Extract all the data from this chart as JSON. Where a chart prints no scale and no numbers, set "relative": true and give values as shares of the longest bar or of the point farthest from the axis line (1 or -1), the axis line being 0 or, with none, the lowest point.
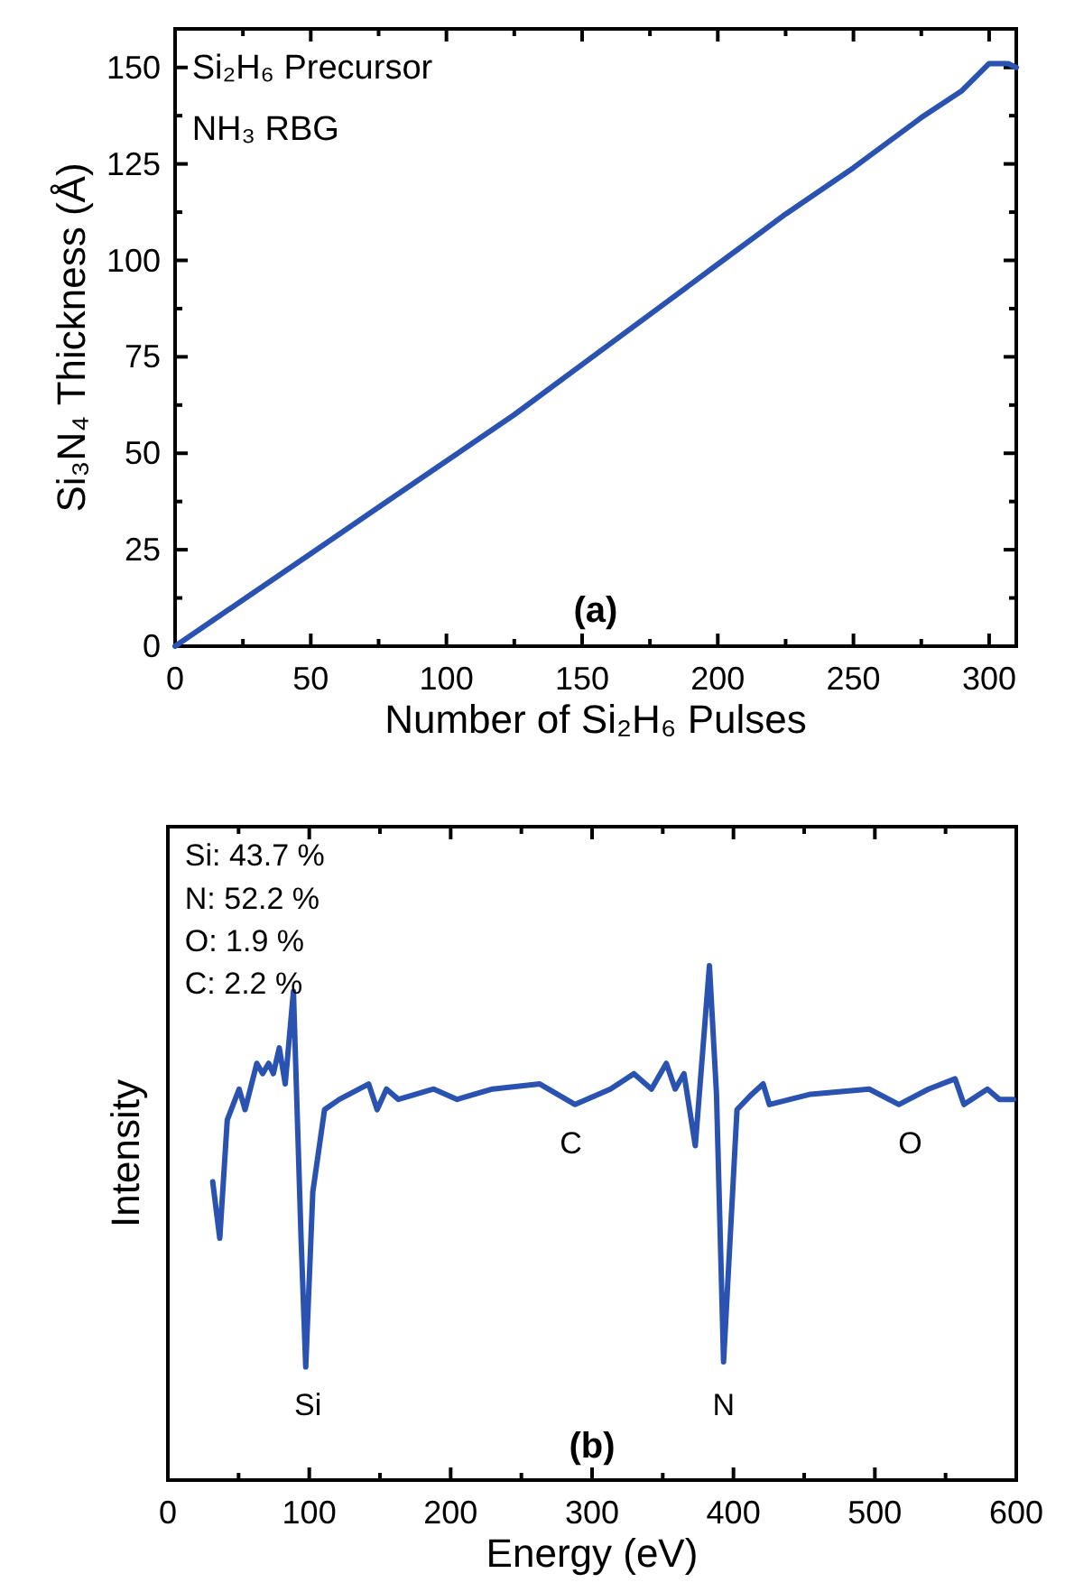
{
  "chart_data": [
    {
      "type": "line",
      "xlabel": "Number of Si₂H₆ Pulses",
      "ylabel": "Si₃N₄ Thickness (Å)",
      "annotations": [
        "Si₂H₆ Precursor",
        "NH₃ RBG",
        "(a)"
      ],
      "xlim": [
        0,
        310
      ],
      "ylim": [
        0,
        160
      ],
      "xticks": [
        0,
        {
          "value": 25,
          "label": null
        },
        50,
        {
          "value": 75,
          "label": null
        },
        100,
        {
          "value": 125,
          "label": null
        },
        150,
        {
          "value": 175,
          "label": null
        },
        200,
        {
          "value": 225,
          "label": null
        },
        250,
        {
          "value": 275,
          "label": null
        },
        300
      ],
      "yticks": [
        0,
        {
          "value": 12.5,
          "label": null
        },
        25,
        {
          "value": 37.5,
          "label": null
        },
        50,
        {
          "value": 62.5,
          "label": null
        },
        75,
        {
          "value": 87.5,
          "label": null
        },
        100,
        {
          "value": 112.5,
          "label": null
        },
        125,
        {
          "value": 137.5,
          "label": null
        },
        150
      ],
      "marker": "none",
      "grid": false,
      "series": [
        {
          "color": "#2a52b0",
          "x": [
            0,
            25,
            50,
            75,
            100,
            125,
            150,
            175,
            200,
            225,
            250,
            275,
            290,
            300,
            307,
            310
          ],
          "values": [
            0,
            12,
            24,
            36,
            48,
            60,
            73,
            86,
            99,
            112,
            124,
            137,
            144,
            151,
            151,
            150
          ]
        }
      ]
    },
    {
      "type": "line",
      "xlabel": "Energy (eV)",
      "ylabel": "Intensity",
      "relative": true,
      "annotations": [
        "Si: 43.7 %",
        "N: 52.2 %",
        "O: 1.9 %",
        "C: 2.2 %",
        "(b)",
        "Si",
        "N",
        "C",
        "O"
      ],
      "xlim": [
        0,
        600
      ],
      "xticks": [
        0,
        {
          "value": 50,
          "label": null
        },
        100,
        {
          "value": 150,
          "label": null
        },
        200,
        {
          "value": 250,
          "label": null
        },
        300,
        {
          "value": 350,
          "label": null
        },
        400,
        {
          "value": 450,
          "label": null
        },
        500,
        {
          "value": 550,
          "label": null
        },
        600
      ],
      "marker": "none",
      "grid": false,
      "series": [
        {
          "color": "#2a52b0",
          "x": [
            31.7,
            36.7,
            42,
            50.4,
            54.6,
            62.9,
            67,
            71.3,
            74.6,
            78.8,
            83,
            88.8,
            94.2,
            97.5,
            102.5,
            110.8,
            121.3,
            142,
            148,
            154.6,
            163,
            188,
            204.6,
            229.6,
            263,
            288,
            313,
            329.6,
            342,
            352.5,
            358.8,
            365,
            373,
            383,
            388,
            393,
            402.5,
            413,
            421,
            425.4,
            454.6,
            496,
            517,
            538,
            556.7,
            563,
            579.6,
            588,
            598
          ],
          "values": [
            0.58,
            0.47,
            0.7,
            0.76,
            0.72,
            0.81,
            0.79,
            0.81,
            0.79,
            0.84,
            0.77,
            0.95,
            0.47,
            0.22,
            0.56,
            0.72,
            0.74,
            0.77,
            0.72,
            0.76,
            0.74,
            0.76,
            0.74,
            0.76,
            0.77,
            0.73,
            0.76,
            0.79,
            0.76,
            0.81,
            0.76,
            0.79,
            0.65,
            1,
            0.75,
            0.23,
            0.72,
            0.75,
            0.77,
            0.73,
            0.75,
            0.76,
            0.73,
            0.76,
            0.78,
            0.73,
            0.76,
            0.74,
            0.74
          ]
        }
      ]
    }
  ]
}
